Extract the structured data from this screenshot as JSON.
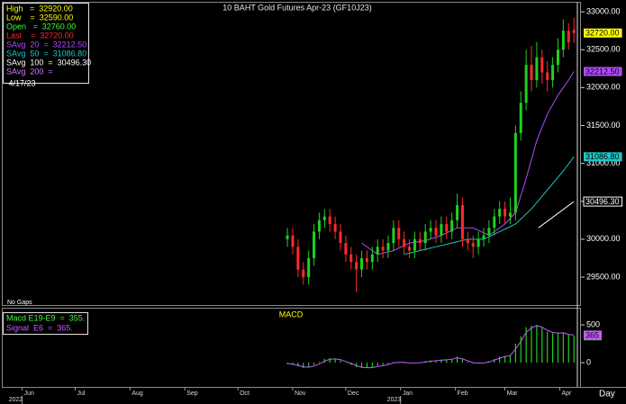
{
  "chart_data": [
    {
      "type": "candlestick",
      "title": "10 BAHT Gold Futures Apr-23 (GF10J23)",
      "note": "No Gaps",
      "x": [
        150,
        153,
        156,
        159,
        162,
        165,
        168,
        171,
        174,
        177,
        180,
        183,
        186,
        189,
        192,
        195,
        198,
        201,
        204,
        207,
        210,
        213,
        216,
        219,
        222,
        225,
        228,
        231,
        234,
        237,
        240,
        243,
        246,
        249,
        252,
        255,
        258,
        261,
        264,
        267,
        270,
        273,
        276,
        279,
        282,
        285,
        288,
        291,
        294,
        297,
        300,
        303,
        306,
        309,
        312
      ],
      "open": [
        30000,
        30050,
        29900,
        29600,
        29500,
        29750,
        30100,
        30250,
        30300,
        30200,
        30100,
        29950,
        29800,
        29700,
        29600,
        29750,
        29700,
        29800,
        29900,
        29850,
        29950,
        30150,
        30000,
        29900,
        29850,
        30000,
        29950,
        30100,
        30150,
        30050,
        30200,
        30100,
        30250,
        30450,
        30000,
        29950,
        29900,
        30000,
        30050,
        30150,
        30300,
        30400,
        30300,
        30350,
        31400,
        31800,
        32300,
        32100,
        32400,
        32200,
        32100,
        32300,
        32500,
        32750,
        32760
      ],
      "high": [
        30150,
        30150,
        30000,
        29700,
        29850,
        30200,
        30350,
        30400,
        30400,
        30300,
        30200,
        30050,
        29900,
        29800,
        29850,
        29850,
        29900,
        30000,
        30000,
        30050,
        30250,
        30250,
        30100,
        30000,
        30100,
        30100,
        30200,
        30250,
        30250,
        30300,
        30300,
        30350,
        30600,
        30550,
        30100,
        30050,
        30100,
        30150,
        30250,
        30400,
        30500,
        30500,
        30550,
        31500,
        31950,
        32500,
        32550,
        32600,
        32500,
        32350,
        32400,
        32650,
        32900,
        32850,
        32920
      ],
      "low": [
        29900,
        29800,
        29500,
        29400,
        29400,
        29650,
        30000,
        30150,
        30100,
        30000,
        29850,
        29700,
        29600,
        29300,
        29500,
        29600,
        29600,
        29700,
        29750,
        29750,
        29850,
        29900,
        29800,
        29750,
        29750,
        29850,
        29850,
        30000,
        29950,
        29950,
        30000,
        30000,
        30150,
        29900,
        29850,
        29750,
        29800,
        29900,
        29950,
        30050,
        30200,
        30200,
        30200,
        30250,
        31300,
        31700,
        31950,
        32000,
        32050,
        31950,
        32000,
        32200,
        32400,
        32500,
        32590
      ],
      "close": [
        30050,
        29900,
        29600,
        29500,
        29750,
        30100,
        30250,
        30300,
        30200,
        30100,
        29950,
        29800,
        29700,
        29600,
        29750,
        29700,
        29800,
        29900,
        29850,
        29950,
        30150,
        30000,
        29900,
        29850,
        30000,
        29950,
        30100,
        30150,
        30050,
        30200,
        30100,
        30250,
        30450,
        30000,
        29950,
        29900,
        30000,
        30050,
        30150,
        30300,
        30400,
        30300,
        30350,
        31400,
        31800,
        32300,
        32100,
        32400,
        32200,
        32100,
        32300,
        32500,
        32750,
        32600,
        32720
      ],
      "up_color": "#1fd11f",
      "down_color": "#ff2a2a",
      "close_label": "32720.00",
      "close_label_bg": "#ffff00",
      "series": [
        {
          "color": "#b24bff",
          "label_bg": "#b24bff",
          "x": [
            192,
            201,
            210,
            219,
            228,
            237,
            246,
            255,
            264,
            273,
            279,
            285,
            291,
            297,
            303,
            309,
            312
          ],
          "values": [
            29950,
            29800,
            29850,
            29950,
            29980,
            30050,
            30150,
            30150,
            30050,
            30200,
            30350,
            30800,
            31300,
            31650,
            31900,
            32100,
            32212.5
          ],
          "end_label": "32212.50"
        },
        {
          "color": "#1ec8c8",
          "label_bg": "#1ec8c8",
          "x": [
            216,
            225,
            234,
            243,
            252,
            261,
            270,
            279,
            288,
            297,
            306,
            312
          ],
          "values": [
            29800,
            29850,
            29900,
            29950,
            30000,
            30000,
            30100,
            30200,
            30400,
            30650,
            30900,
            31086.8
          ],
          "end_label": "31086.80"
        },
        {
          "color": "#ffffff",
          "label_bg": "#000000",
          "x": [
            292,
            312
          ],
          "values": [
            30150,
            30496.3
          ],
          "end_label": "30496.30"
        }
      ],
      "xlim": [
        -11,
        316
      ],
      "ylim": [
        29120,
        33120
      ],
      "yticks": [
        {
          "value": 29500,
          "label": "29500.00"
        },
        {
          "value": 30000,
          "label": "30000.00"
        },
        {
          "value": 30500,
          "label": "30500.00"
        },
        {
          "value": 31000,
          "label": "31000.00"
        },
        {
          "value": 31500,
          "label": "31500.00"
        },
        {
          "value": 32000,
          "label": "32000.00"
        },
        {
          "value": 32500,
          "label": "32500.00"
        },
        {
          "value": 33000,
          "label": "33000.00"
        }
      ],
      "info": [
        {
          "text": "High   =  32920.00",
          "color": "#ffff00"
        },
        {
          "text": "Low    =  32590.00",
          "color": "#ffff00"
        },
        {
          "text": "Open   =  32760.00",
          "color": "#3cff3c"
        },
        {
          "text": "Last    =  32720.00",
          "color": "#ff2a2a"
        },
        {
          "text": "SAvg  20  =  32212.50",
          "color": "#b24bff"
        },
        {
          "text": "SAvg  50  =  31086.80",
          "color": "#1ec8c8"
        },
        {
          "text": "SAvg  100  =  30496.30",
          "color": "#ffffff"
        },
        {
          "text": "SAvg  200  =",
          "color": "#d27bff"
        },
        {
          "text": " 4/17/23",
          "color": "#ffffff"
        }
      ]
    },
    {
      "type": "macd",
      "title": "MACD",
      "x": [
        150,
        153,
        156,
        159,
        162,
        165,
        168,
        171,
        174,
        177,
        180,
        183,
        186,
        189,
        192,
        195,
        198,
        201,
        204,
        207,
        210,
        213,
        216,
        219,
        222,
        225,
        228,
        231,
        234,
        237,
        240,
        243,
        246,
        249,
        252,
        255,
        258,
        261,
        264,
        267,
        270,
        273,
        276,
        279,
        282,
        285,
        288,
        291,
        294,
        297,
        300,
        303,
        306,
        309,
        312
      ],
      "series": [
        {
          "style": "bar",
          "color": "#1fd11f",
          "label_bg": "#1fd11f",
          "end_label": "355",
          "values": [
            -20,
            -30,
            -50,
            -70,
            -60,
            -30,
            10,
            50,
            60,
            50,
            30,
            0,
            -30,
            -60,
            -70,
            -70,
            -60,
            -40,
            -30,
            -20,
            10,
            10,
            0,
            -10,
            0,
            0,
            20,
            30,
            30,
            40,
            40,
            50,
            80,
            40,
            10,
            -10,
            -10,
            0,
            20,
            50,
            80,
            90,
            100,
            250,
            350,
            470,
            490,
            500,
            460,
            410,
            390,
            390,
            400,
            370,
            355
          ]
        },
        {
          "style": "line",
          "color": "#c45cff",
          "label_bg": "#c45cff",
          "end_label": "365",
          "values": [
            -10,
            -20,
            -35,
            -55,
            -60,
            -45,
            -15,
            20,
            45,
            50,
            40,
            15,
            -10,
            -40,
            -60,
            -65,
            -65,
            -50,
            -40,
            -25,
            0,
            5,
            3,
            -5,
            -3,
            0,
            10,
            20,
            25,
            35,
            38,
            45,
            65,
            50,
            25,
            0,
            -5,
            -3,
            10,
            35,
            60,
            80,
            95,
            180,
            280,
            400,
            460,
            490,
            470,
            430,
            400,
            390,
            395,
            375,
            365
          ]
        }
      ],
      "legend": [
        {
          "text": "Macd E19-E9  =  355.",
          "color": "#3cff3c"
        },
        {
          "text": "Signal  E6  =  365.",
          "color": "#c45cff"
        }
      ],
      "xlim": [
        -11,
        316
      ],
      "ylim": [
        -320,
        715
      ],
      "yticks": [
        0,
        500
      ],
      "xticks": [
        {
          "value": 0,
          "label": "Jun"
        },
        {
          "value": 30,
          "label": "Jul"
        },
        {
          "value": 61,
          "label": "Aug"
        },
        {
          "value": 92,
          "label": "Sep"
        },
        {
          "value": 122,
          "label": "Oct"
        },
        {
          "value": 153,
          "label": "Nov"
        },
        {
          "value": 183,
          "label": "Dec"
        },
        {
          "value": 214,
          "label": "Jan"
        },
        {
          "value": 245,
          "label": "Feb"
        },
        {
          "value": 273,
          "label": "Mar"
        },
        {
          "value": 304,
          "label": "Apr"
        }
      ],
      "year_ticks": [
        {
          "value": 0,
          "label": "2022"
        },
        {
          "value": 214,
          "label": "2023"
        }
      ],
      "x_unit": "Day"
    }
  ]
}
